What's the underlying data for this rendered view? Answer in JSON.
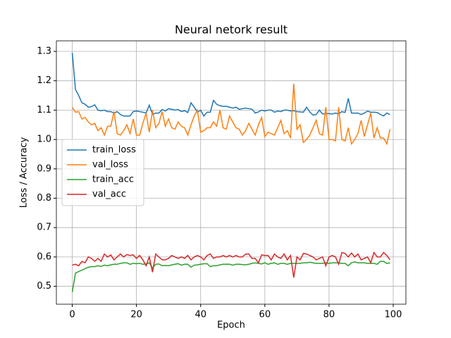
{
  "chart_data": {
    "type": "line",
    "title": "Neural netork result",
    "xlabel": "Epoch",
    "ylabel": "Loss / Accuracy",
    "x": [
      0,
      1,
      2,
      3,
      4,
      5,
      6,
      7,
      8,
      9,
      10,
      11,
      12,
      13,
      14,
      15,
      16,
      17,
      18,
      19,
      20,
      21,
      22,
      23,
      24,
      25,
      26,
      27,
      28,
      29,
      30,
      31,
      32,
      33,
      34,
      35,
      36,
      37,
      38,
      39,
      40,
      41,
      42,
      43,
      44,
      45,
      46,
      47,
      48,
      49,
      50,
      51,
      52,
      53,
      54,
      55,
      56,
      57,
      58,
      59,
      60,
      61,
      62,
      63,
      64,
      65,
      66,
      67,
      68,
      69,
      70,
      71,
      72,
      73,
      74,
      75,
      76,
      77,
      78,
      79,
      80,
      81,
      82,
      83,
      84,
      85,
      86,
      87,
      88,
      89,
      90,
      91,
      92,
      93,
      94,
      95,
      96,
      97,
      98,
      99
    ],
    "series": [
      {
        "name": "train_loss",
        "color": "#1f77b4",
        "values": [
          1.295,
          1.17,
          1.15,
          1.125,
          1.12,
          1.11,
          1.112,
          1.118,
          1.1,
          1.098,
          1.1,
          1.095,
          1.095,
          1.09,
          1.095,
          1.085,
          1.08,
          1.08,
          1.08,
          1.095,
          1.097,
          1.095,
          1.093,
          1.09,
          1.117,
          1.085,
          1.09,
          1.09,
          1.102,
          1.097,
          1.105,
          1.103,
          1.1,
          1.102,
          1.095,
          1.098,
          1.092,
          1.125,
          1.11,
          1.093,
          1.1,
          1.08,
          1.093,
          1.093,
          1.133,
          1.12,
          1.115,
          1.113,
          1.113,
          1.11,
          1.107,
          1.11,
          1.103,
          1.105,
          1.107,
          1.105,
          1.103,
          1.09,
          1.094,
          1.1,
          1.097,
          1.1,
          1.1,
          1.093,
          1.097,
          1.095,
          1.1,
          1.1,
          1.097,
          1.098,
          1.095,
          1.094,
          1.093,
          1.11,
          1.094,
          1.083,
          1.085,
          1.1,
          1.087,
          1.088,
          1.088,
          1.087,
          1.09,
          1.087,
          1.095,
          1.092,
          1.14,
          1.09,
          1.09,
          1.09,
          1.085,
          1.09,
          1.097,
          1.093,
          1.093,
          1.092,
          1.085,
          1.08,
          1.09,
          1.085
        ]
      },
      {
        "name": "val_loss",
        "color": "#ff7f0e",
        "values": [
          1.11,
          1.093,
          1.095,
          1.07,
          1.075,
          1.06,
          1.05,
          1.055,
          1.03,
          1.04,
          1.015,
          1.045,
          1.045,
          1.095,
          1.02,
          1.015,
          1.03,
          1.05,
          1.02,
          1.07,
          1.015,
          1.015,
          1.055,
          1.09,
          1.025,
          1.1,
          1.04,
          1.055,
          1.095,
          1.045,
          1.07,
          1.04,
          1.035,
          1.06,
          1.045,
          1.04,
          1.015,
          1.05,
          1.08,
          1.1,
          1.025,
          1.03,
          1.04,
          1.04,
          1.06,
          1.045,
          1.1,
          1.04,
          1.035,
          1.08,
          1.06,
          1.04,
          1.035,
          1.015,
          1.03,
          1.055,
          1.035,
          1.015,
          1.05,
          1.075,
          1.01,
          1.025,
          1.02,
          1.015,
          1.04,
          1.065,
          1.02,
          1.03,
          1.005,
          1.19,
          1.035,
          1.05,
          0.99,
          1.0,
          1.015,
          1.04,
          1.065,
          1.02,
          1.015,
          1.11,
          1.0,
          1.0,
          0.995,
          1.11,
          1.0,
          0.995,
          1.04,
          0.985,
          1.0,
          1.02,
          1.065,
          1.01,
          1.05,
          1.09,
          1.005,
          1.04,
          1.005,
          1.005,
          0.985,
          1.035
        ]
      },
      {
        "name": "train_acc",
        "color": "#2ca02c",
        "values": [
          0.48,
          0.545,
          0.55,
          0.555,
          0.56,
          0.565,
          0.567,
          0.567,
          0.57,
          0.568,
          0.572,
          0.57,
          0.573,
          0.575,
          0.575,
          0.578,
          0.58,
          0.58,
          0.575,
          0.578,
          0.577,
          0.578,
          0.575,
          0.576,
          0.58,
          0.562,
          0.575,
          0.576,
          0.57,
          0.571,
          0.57,
          0.573,
          0.575,
          0.577,
          0.572,
          0.575,
          0.575,
          0.565,
          0.572,
          0.573,
          0.575,
          0.577,
          0.577,
          0.567,
          0.57,
          0.57,
          0.573,
          0.575,
          0.575,
          0.575,
          0.572,
          0.575,
          0.575,
          0.574,
          0.573,
          0.575,
          0.578,
          0.58,
          0.578,
          0.576,
          0.58,
          0.575,
          0.578,
          0.58,
          0.575,
          0.578,
          0.578,
          0.575,
          0.578,
          0.578,
          0.578,
          0.578,
          0.58,
          0.58,
          0.582,
          0.58,
          0.578,
          0.578,
          0.578,
          0.58,
          0.578,
          0.58,
          0.58,
          0.58,
          0.578,
          0.578,
          0.57,
          0.58,
          0.583,
          0.58,
          0.58,
          0.58,
          0.578,
          0.578,
          0.578,
          0.575,
          0.585,
          0.585,
          0.578,
          0.58
        ]
      },
      {
        "name": "val_acc",
        "color": "#d62728",
        "values": [
          0.572,
          0.575,
          0.57,
          0.585,
          0.58,
          0.6,
          0.595,
          0.585,
          0.595,
          0.585,
          0.61,
          0.6,
          0.607,
          0.59,
          0.6,
          0.61,
          0.6,
          0.608,
          0.605,
          0.607,
          0.595,
          0.605,
          0.59,
          0.57,
          0.6,
          0.548,
          0.61,
          0.6,
          0.59,
          0.59,
          0.595,
          0.605,
          0.6,
          0.595,
          0.6,
          0.595,
          0.605,
          0.59,
          0.6,
          0.605,
          0.6,
          0.59,
          0.605,
          0.61,
          0.595,
          0.6,
          0.6,
          0.605,
          0.6,
          0.605,
          0.6,
          0.605,
          0.6,
          0.6,
          0.61,
          0.61,
          0.595,
          0.595,
          0.58,
          0.607,
          0.605,
          0.605,
          0.59,
          0.61,
          0.6,
          0.595,
          0.61,
          0.59,
          0.605,
          0.53,
          0.6,
          0.59,
          0.612,
          0.61,
          0.605,
          0.6,
          0.59,
          0.595,
          0.6,
          0.57,
          0.6,
          0.605,
          0.6,
          0.575,
          0.615,
          0.612,
          0.6,
          0.613,
          0.6,
          0.61,
          0.59,
          0.595,
          0.6,
          0.58,
          0.615,
          0.6,
          0.6,
          0.615,
          0.605,
          0.59
        ]
      }
    ],
    "xlim": [
      -4.95,
      103.95
    ],
    "ylim": [
      0.439,
      1.336
    ],
    "xticks": [
      0,
      20,
      40,
      60,
      80,
      100
    ],
    "yticks": [
      0.5,
      0.6,
      0.7,
      0.8,
      0.9,
      {
        "value": 1,
        "label": "1.0"
      },
      1.1,
      1.2,
      1.3
    ],
    "grid": true,
    "legend": "center left"
  }
}
